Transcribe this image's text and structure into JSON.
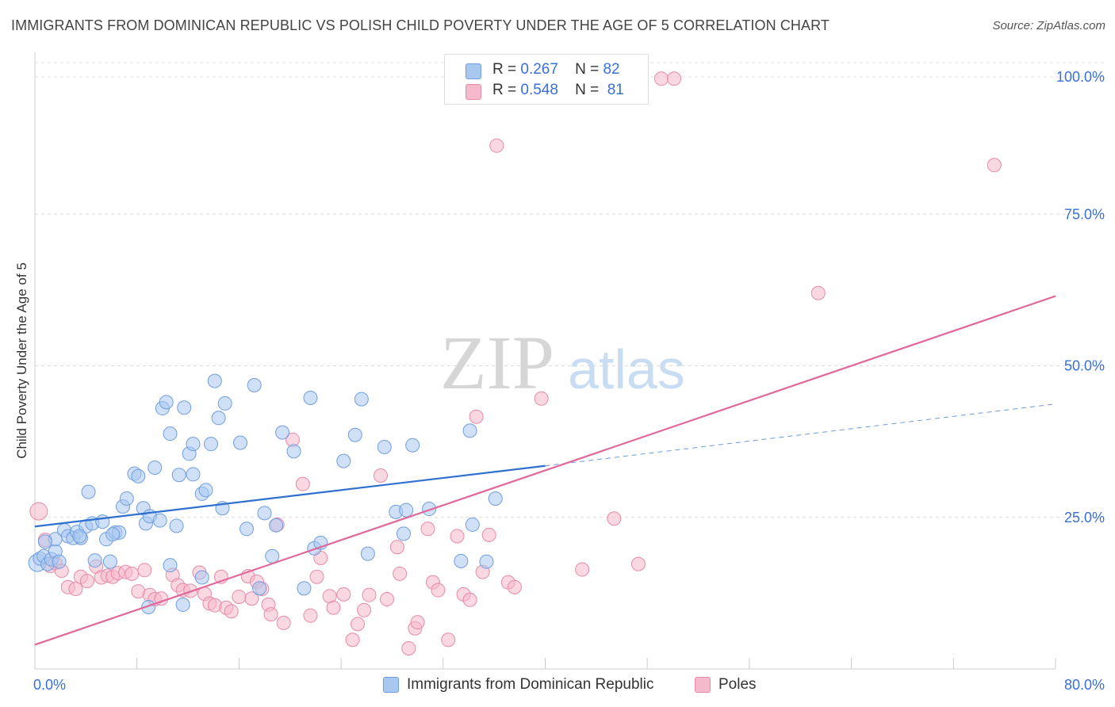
{
  "header": {
    "title": "IMMIGRANTS FROM DOMINICAN REPUBLIC VS POLISH CHILD POVERTY UNDER THE AGE OF 5 CORRELATION CHART",
    "source": "Source: ZipAtlas.com"
  },
  "watermark": {
    "zip": "ZIP",
    "atlas": "atlas"
  },
  "legend": {
    "r_label": "R =",
    "n_label": "N =",
    "series": [
      {
        "name": "Immigrants from Dominican Republic",
        "r": "0.267",
        "n": "82",
        "color": "#a9c8f0",
        "stroke": "#6f9ee0"
      },
      {
        "name": "Poles",
        "r": "0.548",
        "n": "81",
        "color": "#f6b8cb",
        "stroke": "#e88aa8"
      }
    ]
  },
  "chart_data": {
    "type": "scatter",
    "title": "IMMIGRANTS FROM DOMINICAN REPUBLIC VS POLISH CHILD POVERTY UNDER THE AGE OF 5 CORRELATION CHART",
    "xlabel": "",
    "ylabel": "Child Poverty Under the Age of 5",
    "xlim": [
      0,
      80
    ],
    "ylim": [
      0,
      100
    ],
    "x_tick_labels": [
      "0.0%",
      "80.0%"
    ],
    "y_tick_labels": [
      "25.0%",
      "50.0%",
      "75.0%",
      "100.0%"
    ],
    "y_ticks": [
      25,
      50,
      75,
      100
    ],
    "grid": "horizontal dashed",
    "legend_position": "top-center",
    "series": [
      {
        "name": "Immigrants from Dominican Republic",
        "color": "#a9c8f0",
        "trend": {
          "x0": 0,
          "y0": 23.5,
          "x1": 40,
          "y1": 33.5,
          "dashed_to_x": 80,
          "dashed_to_y": 43.7,
          "color": "#2f6fd0"
        },
        "points": [
          [
            0.2,
            17.5
          ],
          [
            0.4,
            18.2
          ],
          [
            0.7,
            18.6
          ],
          [
            1.0,
            17.3
          ],
          [
            1.3,
            18.1
          ],
          [
            1.6,
            19.4
          ],
          [
            1.6,
            21.4
          ],
          [
            2.3,
            22.9
          ],
          [
            2.6,
            21.9
          ],
          [
            3.0,
            21.6
          ],
          [
            3.3,
            22.6
          ],
          [
            3.6,
            21.6
          ],
          [
            4.0,
            23.5
          ],
          [
            4.5,
            24.0
          ],
          [
            4.2,
            29.2
          ],
          [
            4.7,
            17.9
          ],
          [
            5.3,
            24.3
          ],
          [
            5.6,
            21.4
          ],
          [
            5.9,
            17.7
          ],
          [
            6.3,
            22.5
          ],
          [
            6.6,
            22.5
          ],
          [
            6.9,
            26.8
          ],
          [
            7.2,
            28.1
          ],
          [
            7.8,
            32.2
          ],
          [
            8.1,
            31.8
          ],
          [
            8.5,
            26.5
          ],
          [
            8.7,
            24.0
          ],
          [
            9.0,
            25.2
          ],
          [
            9.4,
            33.2
          ],
          [
            9.8,
            24.5
          ],
          [
            10.0,
            43.0
          ],
          [
            10.3,
            44.0
          ],
          [
            10.6,
            38.8
          ],
          [
            10.6,
            17.1
          ],
          [
            11.1,
            23.6
          ],
          [
            11.3,
            32.0
          ],
          [
            11.7,
            43.1
          ],
          [
            12.1,
            35.5
          ],
          [
            12.4,
            32.1
          ],
          [
            12.4,
            37.1
          ],
          [
            13.1,
            28.9
          ],
          [
            13.4,
            29.5
          ],
          [
            13.8,
            37.1
          ],
          [
            14.1,
            47.5
          ],
          [
            14.4,
            41.4
          ],
          [
            14.7,
            26.5
          ],
          [
            14.9,
            43.8
          ],
          [
            16.1,
            37.3
          ],
          [
            16.6,
            23.1
          ],
          [
            17.2,
            46.8
          ],
          [
            17.6,
            13.3
          ],
          [
            18.0,
            25.7
          ],
          [
            18.6,
            18.6
          ],
          [
            18.9,
            23.7
          ],
          [
            19.4,
            39.0
          ],
          [
            20.3,
            35.9
          ],
          [
            21.1,
            13.3
          ],
          [
            21.6,
            44.7
          ],
          [
            21.9,
            19.9
          ],
          [
            22.4,
            20.8
          ],
          [
            24.2,
            34.3
          ],
          [
            25.1,
            38.6
          ],
          [
            25.6,
            44.5
          ],
          [
            26.1,
            19.0
          ],
          [
            27.4,
            36.6
          ],
          [
            28.3,
            25.9
          ],
          [
            28.9,
            22.3
          ],
          [
            29.1,
            26.2
          ],
          [
            29.6,
            36.9
          ],
          [
            30.9,
            26.4
          ],
          [
            33.4,
            17.8
          ],
          [
            34.1,
            39.3
          ],
          [
            34.3,
            23.8
          ],
          [
            35.4,
            17.7
          ],
          [
            36.1,
            28.1
          ],
          [
            8.9,
            10.2
          ],
          [
            11.6,
            10.6
          ],
          [
            13.1,
            15.1
          ],
          [
            6.1,
            22.2
          ],
          [
            3.5,
            21.9
          ],
          [
            1.9,
            17.7
          ],
          [
            0.8,
            21.0
          ]
        ]
      },
      {
        "name": "Poles",
        "color": "#f6b8cb",
        "trend": {
          "x0": 0,
          "y0": 4.0,
          "x1": 80,
          "y1": 61.5,
          "color": "#e0689a"
        },
        "points": [
          [
            0.3,
            26.0
          ],
          [
            0.8,
            21.3
          ],
          [
            1.2,
            17.0
          ],
          [
            1.6,
            17.5
          ],
          [
            2.1,
            16.2
          ],
          [
            2.6,
            13.5
          ],
          [
            3.2,
            13.2
          ],
          [
            3.6,
            15.2
          ],
          [
            4.1,
            14.5
          ],
          [
            4.8,
            16.9
          ],
          [
            5.2,
            15.1
          ],
          [
            5.7,
            15.4
          ],
          [
            6.1,
            15.2
          ],
          [
            6.5,
            15.8
          ],
          [
            7.1,
            16.0
          ],
          [
            7.6,
            15.7
          ],
          [
            8.1,
            12.8
          ],
          [
            8.6,
            16.3
          ],
          [
            9.0,
            12.2
          ],
          [
            9.4,
            11.5
          ],
          [
            9.9,
            11.6
          ],
          [
            10.8,
            15.5
          ],
          [
            11.2,
            13.8
          ],
          [
            11.6,
            13.0
          ],
          [
            12.2,
            12.9
          ],
          [
            12.9,
            15.9
          ],
          [
            13.3,
            12.4
          ],
          [
            13.7,
            10.8
          ],
          [
            14.1,
            10.5
          ],
          [
            14.6,
            15.2
          ],
          [
            15.0,
            10.1
          ],
          [
            15.4,
            9.5
          ],
          [
            16.0,
            11.9
          ],
          [
            16.7,
            15.3
          ],
          [
            17.0,
            11.6
          ],
          [
            17.4,
            14.4
          ],
          [
            17.8,
            13.2
          ],
          [
            18.3,
            10.6
          ],
          [
            18.5,
            9.0
          ],
          [
            19.0,
            23.8
          ],
          [
            19.5,
            7.6
          ],
          [
            20.2,
            37.8
          ],
          [
            21.0,
            30.5
          ],
          [
            21.6,
            8.8
          ],
          [
            22.1,
            15.2
          ],
          [
            22.4,
            18.3
          ],
          [
            23.1,
            12.0
          ],
          [
            23.4,
            10.1
          ],
          [
            24.2,
            12.3
          ],
          [
            24.9,
            4.8
          ],
          [
            25.3,
            7.4
          ],
          [
            25.8,
            9.7
          ],
          [
            26.2,
            12.2
          ],
          [
            27.1,
            31.9
          ],
          [
            27.6,
            11.5
          ],
          [
            28.4,
            20.1
          ],
          [
            28.6,
            15.7
          ],
          [
            29.3,
            3.4
          ],
          [
            29.8,
            6.7
          ],
          [
            30.0,
            7.7
          ],
          [
            30.8,
            23.1
          ],
          [
            31.2,
            14.3
          ],
          [
            31.6,
            13.0
          ],
          [
            32.4,
            4.8
          ],
          [
            33.1,
            21.9
          ],
          [
            33.6,
            12.3
          ],
          [
            34.1,
            11.4
          ],
          [
            34.6,
            41.6
          ],
          [
            35.1,
            16.0
          ],
          [
            35.6,
            22.1
          ],
          [
            36.2,
            86.3
          ],
          [
            37.1,
            14.3
          ],
          [
            37.6,
            13.5
          ],
          [
            39.7,
            44.6
          ],
          [
            42.9,
            16.4
          ],
          [
            45.4,
            24.8
          ],
          [
            47.3,
            17.3
          ],
          [
            49.1,
            99.7
          ],
          [
            50.1,
            99.7
          ],
          [
            61.4,
            62.0
          ],
          [
            75.2,
            83.1
          ]
        ]
      }
    ]
  }
}
